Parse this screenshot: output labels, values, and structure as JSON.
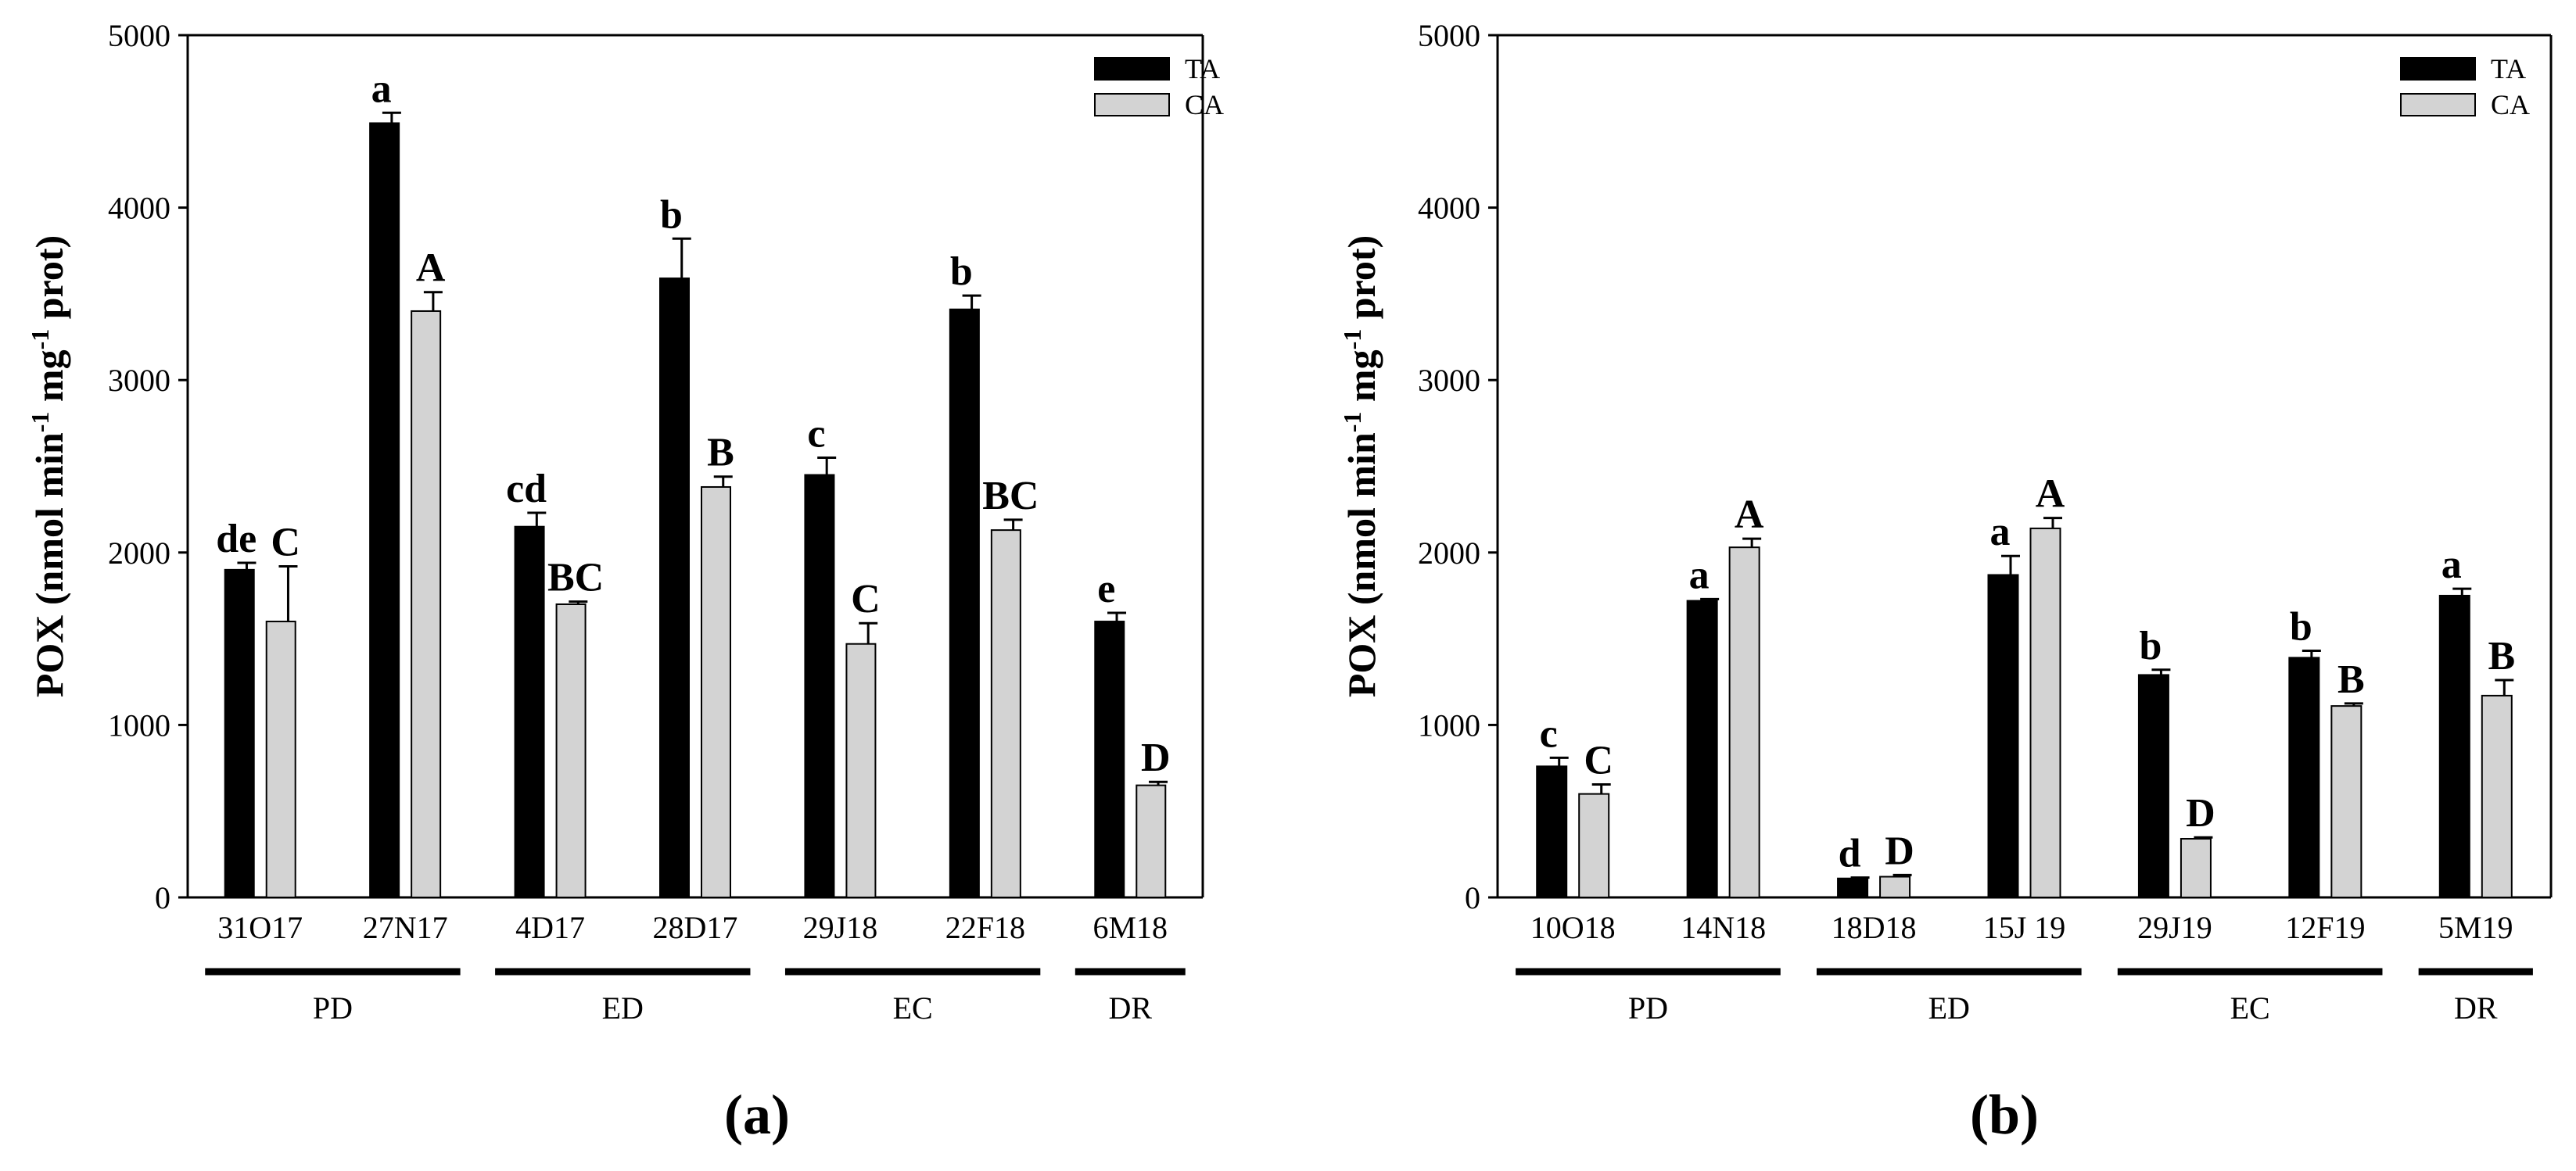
{
  "chart_data": [
    {
      "type": "bar",
      "panel_label": "(a)",
      "ylabel": "POX (nmol min-1 mg-1 prot)",
      "ylabel_parts": {
        "main": "POX (nmol min",
        "sup1": "-1",
        "mid": " mg",
        "sup2": "-1",
        "end": " prot)"
      },
      "ylim": [
        0,
        5000
      ],
      "yticks": [
        0,
        1000,
        2000,
        3000,
        4000,
        5000
      ],
      "legend": [
        "TA",
        "CA"
      ],
      "legend_position": "top-right",
      "categories": [
        "31O17",
        "27N17",
        "4D17",
        "28D17",
        "29J18",
        "22F18",
        "6M18"
      ],
      "series": [
        {
          "name": "TA",
          "color": "#000000",
          "values": [
            1900,
            4490,
            2150,
            3590,
            2450,
            3410,
            1600
          ],
          "errors": [
            40,
            60,
            80,
            230,
            100,
            80,
            50
          ],
          "labels": [
            "de",
            "a",
            "cd",
            "b",
            "c",
            "b",
            "e"
          ]
        },
        {
          "name": "CA",
          "color": "#d3d3d3",
          "values": [
            1600,
            3400,
            1700,
            2380,
            1470,
            2130,
            650
          ],
          "errors": [
            320,
            110,
            15,
            60,
            120,
            60,
            20
          ],
          "labels": [
            "C",
            "A",
            "BC",
            "B",
            "C",
            "BC",
            "D"
          ]
        }
      ],
      "groups": [
        {
          "name": "PD",
          "from": 0,
          "to": 1
        },
        {
          "name": "ED",
          "from": 2,
          "to": 3
        },
        {
          "name": "EC",
          "from": 4,
          "to": 5
        },
        {
          "name": "DR",
          "from": 6,
          "to": 6
        }
      ]
    },
    {
      "type": "bar",
      "panel_label": "(b)",
      "ylabel": "POX (nmol min-1 mg-1 prot)",
      "ylabel_parts": {
        "main": "POX (nmol min",
        "sup1": "-1",
        "mid": " mg",
        "sup2": "-1",
        "end": " prot)"
      },
      "ylim": [
        0,
        5000
      ],
      "yticks": [
        0,
        1000,
        2000,
        3000,
        4000,
        5000
      ],
      "legend": [
        "TA",
        "CA"
      ],
      "legend_position": "top-right",
      "categories": [
        "10O18",
        "14N18",
        "18D18",
        "15J 19",
        "29J19",
        "12F19",
        "5M19"
      ],
      "series": [
        {
          "name": "TA",
          "color": "#000000",
          "values": [
            760,
            1720,
            110,
            1870,
            1290,
            1390,
            1750
          ],
          "errors": [
            50,
            10,
            5,
            110,
            30,
            40,
            40
          ],
          "labels": [
            "c",
            "a",
            "d",
            "a",
            "b",
            "b",
            "a"
          ]
        },
        {
          "name": "CA",
          "color": "#d3d3d3",
          "values": [
            600,
            2030,
            120,
            2140,
            340,
            1110,
            1170
          ],
          "errors": [
            55,
            50,
            10,
            60,
            8,
            15,
            90
          ],
          "labels": [
            "C",
            "A",
            "D",
            "A",
            "D",
            "B",
            "B"
          ]
        }
      ],
      "groups": [
        {
          "name": "PD",
          "from": 0,
          "to": 1
        },
        {
          "name": "ED",
          "from": 2,
          "to": 3
        },
        {
          "name": "EC",
          "from": 4,
          "to": 5
        },
        {
          "name": "DR",
          "from": 6,
          "to": 6
        }
      ]
    }
  ]
}
